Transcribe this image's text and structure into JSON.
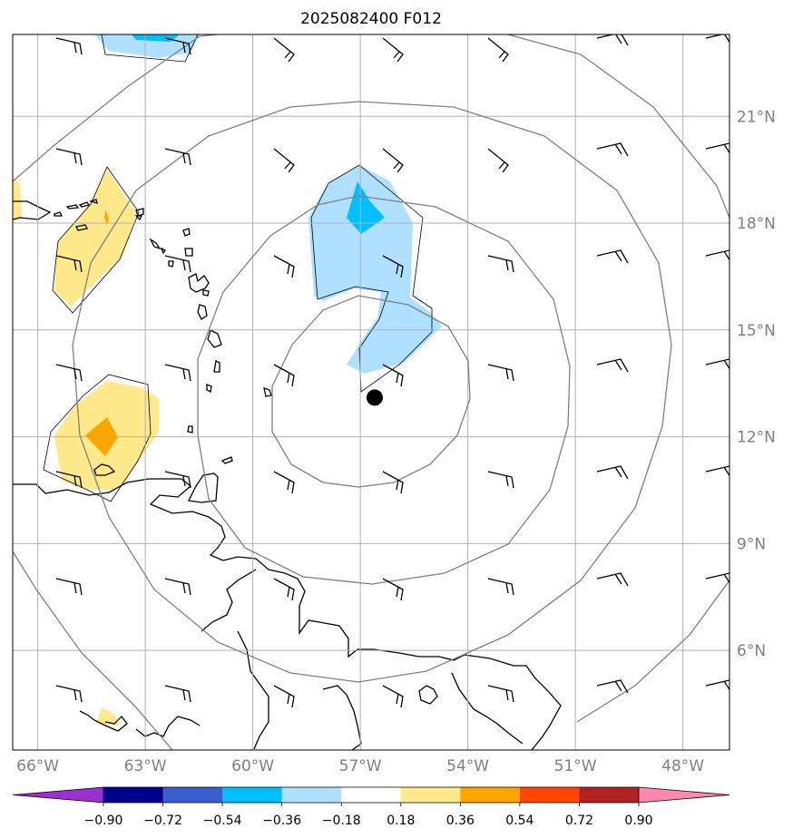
{
  "title": "2025082400 F012",
  "map": {
    "lon_range": [
      -66.7,
      -46.7
    ],
    "lat_range": [
      3.2,
      23.3
    ],
    "lon_ticks": [
      {
        "value": -66,
        "label": "66°W"
      },
      {
        "value": -63,
        "label": "63°W"
      },
      {
        "value": -60,
        "label": "60°W"
      },
      {
        "value": -57,
        "label": "57°W"
      },
      {
        "value": -54,
        "label": "54°W"
      },
      {
        "value": -51,
        "label": "51°W"
      },
      {
        "value": -48,
        "label": "48°W"
      }
    ],
    "lat_ticks": [
      {
        "value": 6,
        "label": "6°N"
      },
      {
        "value": 9,
        "label": "9°N"
      },
      {
        "value": 12,
        "label": "12°N"
      },
      {
        "value": 15,
        "label": "15°N"
      },
      {
        "value": 18,
        "label": "18°N"
      },
      {
        "value": 21,
        "label": "21°N"
      }
    ],
    "grid": true,
    "storm_center": {
      "lon": -56.6,
      "lat": 13.1
    },
    "range_rings_deg": [
      3,
      6,
      9,
      12
    ],
    "colors": {
      "coastline": "#000000",
      "gridline": "#b0b0b0",
      "ring": "#808080",
      "storm_marker": "#000000"
    }
  },
  "colorbar": {
    "levels": [
      "−0.90",
      "−0.72",
      "−0.54",
      "−0.36",
      "−0.18",
      "0.18",
      "0.36",
      "0.54",
      "0.72",
      "0.90"
    ],
    "colors": [
      "#9b30d0",
      "#00008b",
      "#3a5fcd",
      "#00bfff",
      "#b0e0ff",
      "#ffffff",
      "#ffe98a",
      "#ffa500",
      "#ff4500",
      "#b22222",
      "#ff88b0"
    ],
    "extend": "both"
  }
}
